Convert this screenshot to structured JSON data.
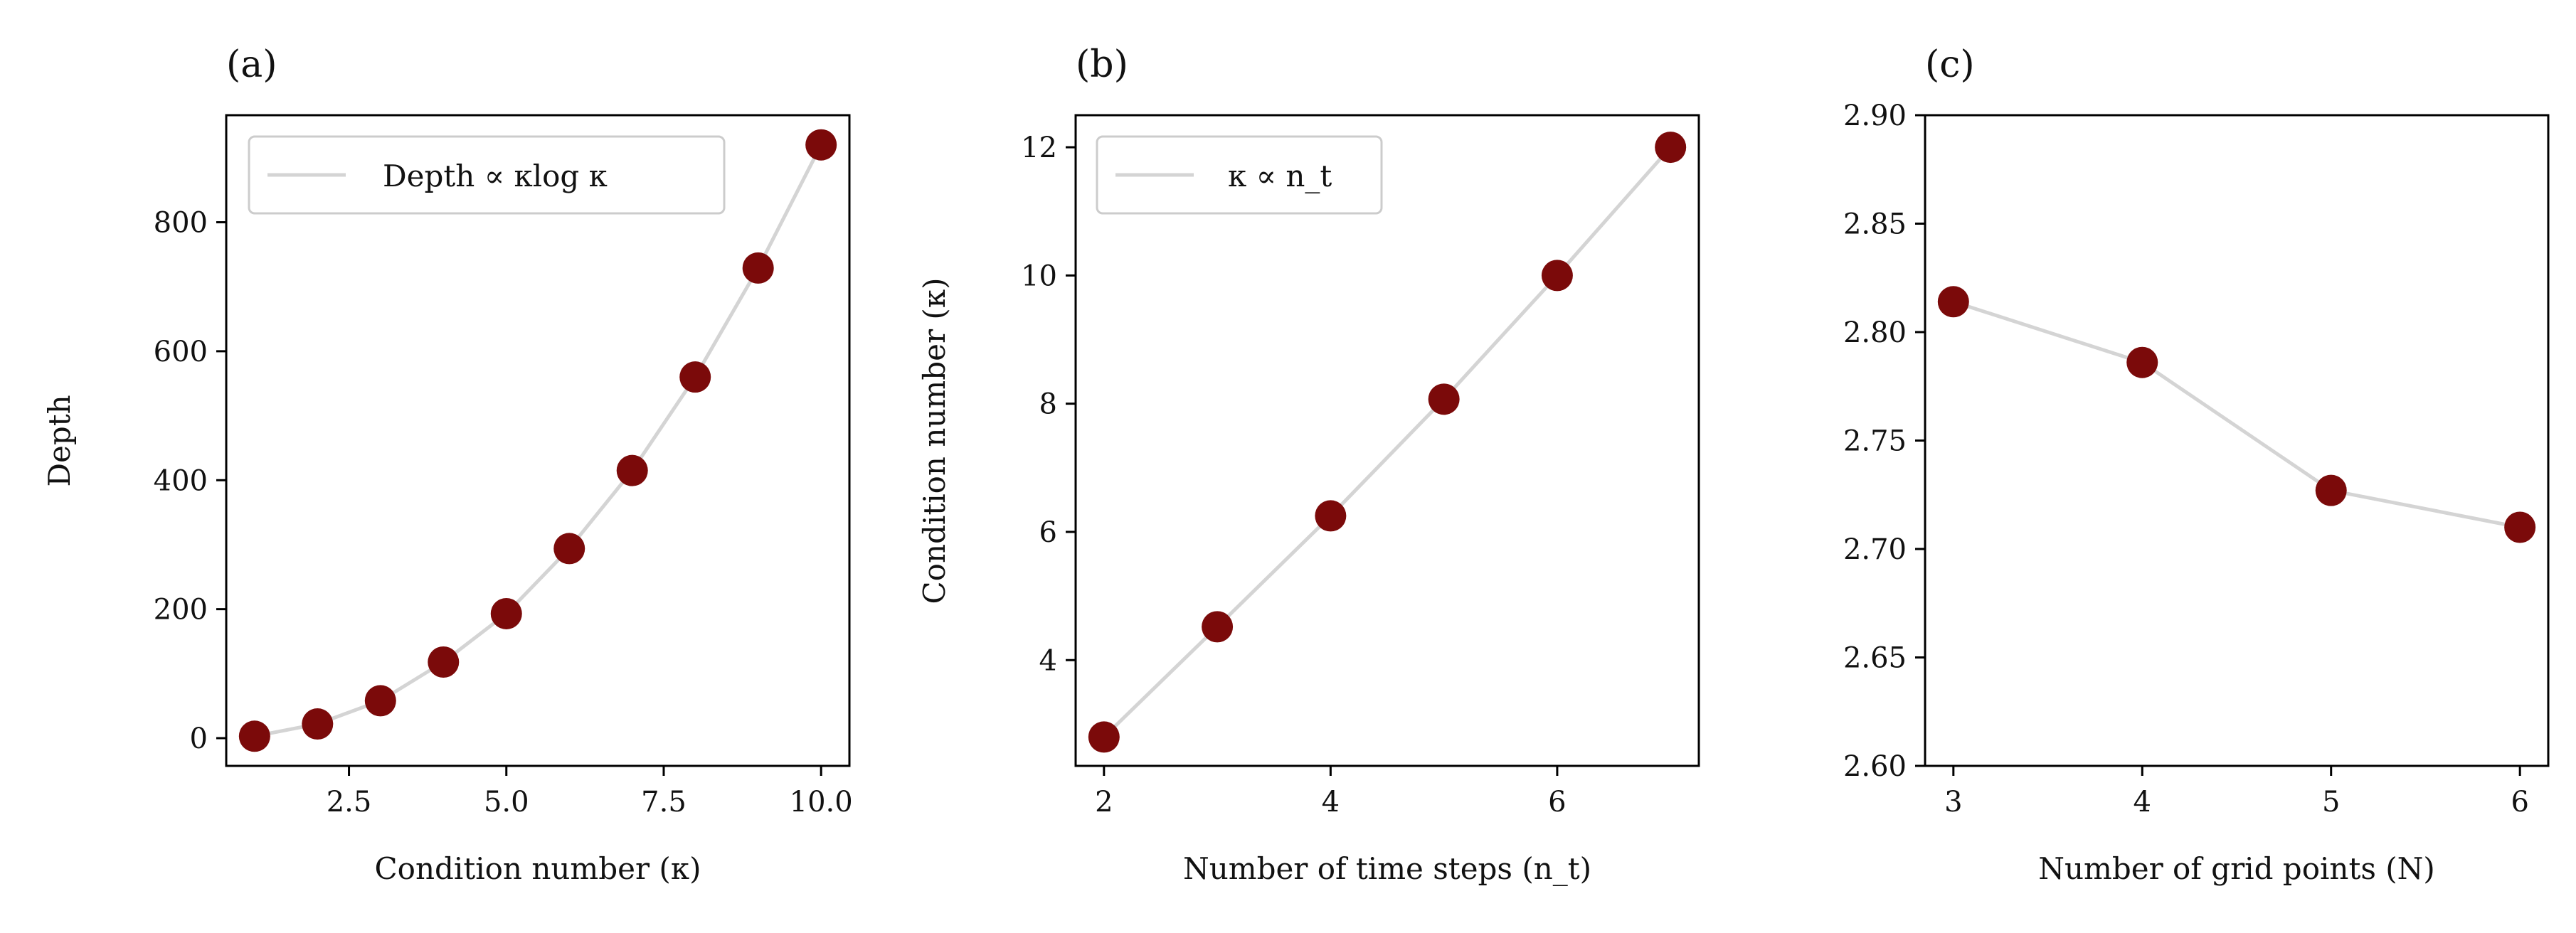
{
  "colors": {
    "marker": "#7b0a0a",
    "line": "#d4d4d4",
    "axis": "#000000"
  },
  "chart_data": [
    {
      "type": "scatter",
      "panel_label": "(a)",
      "xlabel": "Condition number (κ)",
      "ylabel": "Depth",
      "xlim": [
        0.55,
        10.45
      ],
      "ylim": [
        -43,
        966
      ],
      "xticks": [
        2.5,
        5.0,
        7.5,
        10.0
      ],
      "xtick_labels": [
        "2.5",
        "5.0",
        "7.5",
        "10.0"
      ],
      "yticks": [
        0,
        200,
        400,
        600,
        800
      ],
      "ytick_labels": [
        "0",
        "200",
        "400",
        "600",
        "800"
      ],
      "legend": {
        "label": "Depth ∝ κlog κ",
        "placement": "upper-left"
      },
      "series": [
        {
          "x": [
            1,
            2,
            3,
            4,
            5,
            6,
            7,
            8,
            9,
            10
          ],
          "y": [
            3,
            22,
            58,
            118,
            193,
            294,
            415,
            560,
            729,
            920
          ]
        }
      ]
    },
    {
      "type": "scatter",
      "panel_label": "(b)",
      "xlabel": "Number of time steps (n_t)",
      "ylabel": "Condition number (κ)",
      "xlim": [
        1.75,
        7.25
      ],
      "ylim": [
        2.35,
        12.5
      ],
      "xticks": [
        2,
        4,
        6
      ],
      "xtick_labels": [
        "2",
        "4",
        "6"
      ],
      "yticks": [
        4,
        6,
        8,
        10,
        12
      ],
      "ytick_labels": [
        "4",
        "6",
        "8",
        "10",
        "12"
      ],
      "legend": {
        "label": "κ ∝ n_t",
        "placement": "upper-left"
      },
      "series": [
        {
          "x": [
            2,
            3,
            4,
            5,
            6,
            7
          ],
          "y": [
            2.8,
            4.52,
            6.25,
            8.07,
            10.0,
            12.0
          ]
        }
      ]
    },
    {
      "type": "scatter",
      "panel_label": "(c)",
      "xlabel": "Number of grid points (N)",
      "ylabel": "",
      "xlim": [
        2.85,
        6.15
      ],
      "ylim": [
        2.6,
        2.9
      ],
      "xticks": [
        3,
        4,
        5,
        6
      ],
      "xtick_labels": [
        "3",
        "4",
        "5",
        "6"
      ],
      "yticks": [
        2.6,
        2.65,
        2.7,
        2.75,
        2.8,
        2.85,
        2.9
      ],
      "ytick_labels": [
        "2.60",
        "2.65",
        "2.70",
        "2.75",
        "2.80",
        "2.85",
        "2.90"
      ],
      "series": [
        {
          "x": [
            3,
            4,
            5,
            6
          ],
          "y": [
            2.814,
            2.786,
            2.727,
            2.71
          ]
        }
      ]
    }
  ]
}
